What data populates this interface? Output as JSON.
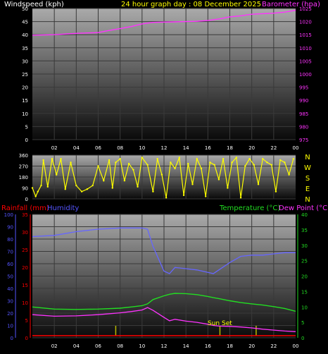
{
  "colors": {
    "background": "#000000",
    "windspeed_title": "#ffffff",
    "header_title": "#ffff00",
    "barometer": "#ff33ff",
    "wind_dir": "#ffff00",
    "rainfall": "#ff0000",
    "humidity": "#5555ff",
    "temperature": "#22dd22",
    "dew_point": "#ff33ff",
    "rain_marker": "#b8b800",
    "sunset": "#ffff00",
    "axis_text": "#ffffff"
  },
  "header": {
    "windspeed_label": "Windspeed (kph)",
    "title": "24 hour graph day : 08 December 2025",
    "barometer_label": "Barometer (hpa)"
  },
  "time_axis_labels": [
    "02",
    "04",
    "06",
    "08",
    "10",
    "12",
    "14",
    "16",
    "18",
    "20",
    "22",
    "00"
  ],
  "wind_direction_labels": [
    "N",
    "W",
    "S",
    "E",
    "N"
  ],
  "bottom_legend": {
    "rainfall_label": "Rainfall (mm)",
    "humidity_label": "Humidity",
    "temperature_label": "Temperature (°C)",
    "dew_point_label": "Dew Point (°C)"
  },
  "annotations": {
    "sunset": "Sun Set"
  },
  "chart_data": [
    {
      "type": "line",
      "panel": "top",
      "y_left": {
        "ticks": [
          0,
          5,
          10,
          15,
          20,
          25,
          30,
          35,
          40,
          45,
          50
        ],
        "ylim": [
          0,
          50
        ]
      },
      "y_right": {
        "ticks": [
          975,
          980,
          985,
          990,
          995,
          1000,
          1005,
          1010,
          1015,
          1020,
          1025
        ],
        "ylim": [
          975,
          1025
        ]
      },
      "x_hours": [
        0,
        2,
        4,
        6,
        7,
        8,
        9,
        10,
        11,
        12,
        13,
        14,
        15,
        16,
        17,
        18,
        19,
        20,
        21,
        22,
        23,
        24
      ],
      "series": [
        {
          "name": "Barometer (hpa)",
          "axis": "right",
          "values": [
            1014.8,
            1015.0,
            1015.5,
            1015.8,
            1016.6,
            1017.3,
            1018.1,
            1019.1,
            1019.7,
            1019.8,
            1019.9,
            1020.0,
            1020.1,
            1020.4,
            1021.0,
            1021.8,
            1022.2,
            1022.8,
            1023.0,
            1023.2,
            1023.6,
            1024.3
          ]
        }
      ]
    },
    {
      "type": "scatter",
      "panel": "middle",
      "ylim": [
        0,
        360
      ],
      "y_ticks": [
        0,
        90,
        180,
        270,
        360
      ],
      "series": [
        {
          "name": "Wind direction",
          "hours": [
            0.0,
            0.3,
            0.5,
            0.8,
            1.0,
            1.4,
            1.8,
            2.2,
            2.6,
            3.0,
            3.5,
            4.0,
            4.5,
            5.0,
            5.5,
            6.0,
            6.5,
            7.0,
            7.3,
            7.6,
            8.0,
            8.4,
            8.8,
            9.2,
            9.6,
            10.0,
            10.5,
            11.0,
            11.4,
            11.8,
            12.2,
            12.6,
            13.0,
            13.4,
            13.8,
            14.2,
            14.6,
            15.0,
            15.4,
            15.8,
            16.2,
            16.6,
            17.0,
            17.4,
            17.8,
            18.2,
            18.6,
            19.0,
            19.4,
            19.8,
            20.2,
            20.6,
            21.0,
            21.4,
            21.8,
            22.2,
            22.6,
            23.0,
            23.4,
            23.8
          ],
          "values": [
            90,
            20,
            60,
            110,
            320,
            100,
            330,
            200,
            330,
            80,
            300,
            110,
            60,
            80,
            110,
            270,
            150,
            320,
            90,
            300,
            330,
            150,
            290,
            240,
            100,
            340,
            280,
            60,
            330,
            200,
            10,
            300,
            250,
            340,
            30,
            290,
            120,
            330,
            250,
            20,
            300,
            280,
            160,
            330,
            90,
            300,
            340,
            10,
            270,
            330,
            280,
            120,
            330,
            300,
            280,
            60,
            320,
            300,
            200,
            330
          ]
        }
      ]
    },
    {
      "type": "line",
      "panel": "bottom",
      "y_left_humidity": {
        "ticks": [
          0,
          10,
          20,
          30,
          40,
          50,
          60,
          70,
          80,
          90,
          100
        ],
        "ylim": [
          0,
          100
        ]
      },
      "y_left_rain": {
        "ticks": [
          0,
          5,
          10,
          15,
          20,
          25,
          30,
          35
        ],
        "ylim": [
          0,
          35
        ]
      },
      "y_right": {
        "ticks": [
          0,
          5,
          10,
          15,
          20,
          25,
          30,
          35,
          40
        ],
        "ylim": [
          0,
          40
        ]
      },
      "x_hours": [
        0,
        2,
        4,
        6,
        8,
        9,
        10,
        10.5,
        11,
        12,
        12.5,
        13,
        14,
        15,
        16,
        16.5,
        17,
        18,
        19,
        20,
        21,
        22,
        23,
        24
      ],
      "series": [
        {
          "name": "Humidity",
          "axis": "left",
          "values": [
            82,
            83,
            86,
            88,
            89,
            89,
            89,
            88,
            74,
            54,
            52,
            57,
            56,
            55,
            53,
            52,
            55,
            61,
            66,
            67,
            67,
            68,
            69,
            69
          ]
        },
        {
          "name": "Temperature (°C)",
          "axis": "right",
          "values": [
            10.0,
            9.3,
            9.2,
            9.3,
            9.6,
            10.0,
            10.4,
            11.0,
            12.4,
            13.6,
            14.1,
            14.4,
            14.3,
            14.0,
            13.4,
            13.0,
            12.7,
            12.0,
            11.4,
            11.0,
            10.6,
            10.1,
            9.5,
            8.6
          ]
        },
        {
          "name": "Dew Point (°C)",
          "axis": "right",
          "values": [
            7.5,
            7.0,
            7.1,
            7.5,
            8.1,
            8.5,
            9.0,
            9.8,
            8.9,
            6.6,
            5.5,
            6.0,
            5.4,
            5.0,
            4.4,
            4.0,
            3.8,
            3.7,
            3.5,
            3.2,
            2.8,
            2.5,
            2.2,
            2.0
          ]
        },
        {
          "name": "Rainfall (mm)",
          "axis": "left",
          "values": [
            0,
            0,
            0,
            0,
            0,
            0,
            0,
            0,
            0,
            0,
            0,
            0,
            0,
            0,
            0,
            0,
            0,
            0,
            0,
            0,
            0,
            0,
            0,
            0
          ]
        }
      ],
      "markers": [
        {
          "hour": 7.6,
          "label": ""
        },
        {
          "hour": 17.1,
          "label": "Sun Set"
        },
        {
          "hour": 20.4,
          "label": ""
        }
      ]
    }
  ]
}
